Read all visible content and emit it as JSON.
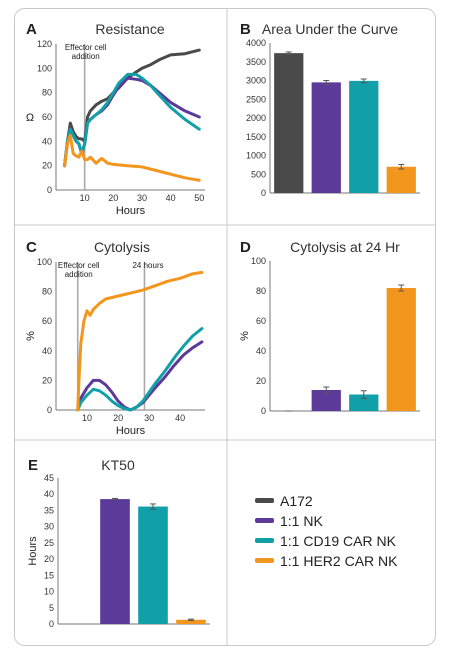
{
  "colors": {
    "A172": "#4a4a4a",
    "NK": "#5b3a9a",
    "CD19": "#12a0a8",
    "HER2": "#f3961e",
    "border": "#c8c8c8"
  },
  "legend": {
    "items": [
      {
        "label": "A172",
        "color_key": "A172"
      },
      {
        "label": "1:1 NK",
        "color_key": "NK"
      },
      {
        "label": "1:1 CD19 CAR NK",
        "color_key": "CD19"
      },
      {
        "label": "1:1 HER2 CAR NK",
        "color_key": "HER2"
      }
    ]
  },
  "chart_data": [
    {
      "id": "A",
      "letter": "A",
      "type": "line",
      "title": "Resistance",
      "xlabel": "Hours",
      "ylabel": "Ω",
      "xlim": [
        0,
        52
      ],
      "ylim": [
        0,
        120
      ],
      "xticks": [
        10,
        20,
        30,
        40,
        50
      ],
      "yticks": [
        0,
        20,
        40,
        60,
        80,
        100,
        120
      ],
      "vline": {
        "x": 10,
        "label_lines": [
          "Effector cell",
          "addition"
        ]
      },
      "series": [
        {
          "key": "A172",
          "x": [
            3,
            4,
            5,
            6,
            7,
            8,
            9,
            10,
            11,
            12,
            14,
            16,
            18,
            20,
            22,
            25,
            28,
            30,
            33,
            36,
            40,
            45,
            50
          ],
          "y": [
            20,
            40,
            55,
            48,
            44,
            42,
            42,
            40,
            60,
            65,
            70,
            73,
            75,
            80,
            84,
            92,
            97,
            100,
            103,
            107,
            111,
            112,
            115
          ]
        },
        {
          "key": "NK",
          "x": [
            3,
            4,
            5,
            6,
            7,
            8,
            9,
            10,
            11,
            12,
            14,
            16,
            18,
            20,
            22,
            25,
            28,
            30,
            33,
            36,
            40,
            45,
            50
          ],
          "y": [
            20,
            40,
            50,
            45,
            40,
            38,
            30,
            38,
            55,
            58,
            62,
            65,
            70,
            78,
            85,
            92,
            91,
            90,
            86,
            80,
            72,
            65,
            60
          ]
        },
        {
          "key": "CD19",
          "x": [
            3,
            4,
            5,
            6,
            7,
            8,
            9,
            10,
            11,
            12,
            14,
            16,
            18,
            20,
            22,
            25,
            28,
            30,
            33,
            36,
            40,
            45,
            50
          ],
          "y": [
            20,
            40,
            50,
            45,
            40,
            38,
            30,
            38,
            55,
            58,
            62,
            66,
            72,
            80,
            88,
            95,
            95,
            92,
            86,
            78,
            68,
            58,
            50
          ]
        },
        {
          "key": "HER2",
          "x": [
            3,
            4,
            5,
            6,
            7,
            8,
            9,
            10,
            11,
            12,
            14,
            16,
            18,
            20,
            25,
            30,
            35,
            40,
            45,
            50
          ],
          "y": [
            20,
            38,
            45,
            30,
            28,
            27,
            32,
            25,
            25,
            27,
            22,
            26,
            22,
            21,
            20,
            19,
            16,
            13,
            10,
            8
          ]
        }
      ]
    },
    {
      "id": "B",
      "letter": "B",
      "type": "bar",
      "title": "Area Under the Curve",
      "ylim": [
        0,
        4000
      ],
      "yticks": [
        0,
        500,
        1000,
        1500,
        2000,
        2500,
        3000,
        3500,
        4000
      ],
      "categories": [
        "A172",
        "1:1 NK",
        "1:1 CD19 CAR NK",
        "1:1 HER2 CAR NK"
      ],
      "values": [
        3730,
        2950,
        2990,
        700
      ],
      "errors": [
        30,
        50,
        50,
        60
      ],
      "color_keys": [
        "A172",
        "NK",
        "CD19",
        "HER2"
      ]
    },
    {
      "id": "C",
      "letter": "C",
      "type": "line",
      "title": "Cytolysis",
      "xlabel": "Hours",
      "ylabel": "%",
      "xlim": [
        0,
        48
      ],
      "ylim": [
        0,
        100
      ],
      "xticks": [
        10,
        20,
        30,
        40
      ],
      "yticks": [
        0,
        20,
        40,
        60,
        80,
        100
      ],
      "vline": {
        "x": 7,
        "label_lines": [
          "Effector cell",
          "addition"
        ]
      },
      "vline2": {
        "x": 28.5,
        "label_lines": [
          "24 hours"
        ]
      },
      "series": [
        {
          "key": "NK",
          "x": [
            7,
            8,
            10,
            12,
            14,
            16,
            18,
            20,
            22,
            24,
            26,
            28,
            30,
            32,
            35,
            38,
            41,
            44,
            47
          ],
          "y": [
            0,
            8,
            15,
            20,
            20,
            17,
            12,
            6,
            2,
            0,
            2,
            5,
            10,
            15,
            22,
            30,
            37,
            42,
            46
          ]
        },
        {
          "key": "CD19",
          "x": [
            7,
            8,
            10,
            12,
            14,
            16,
            18,
            20,
            22,
            24,
            26,
            28,
            30,
            32,
            35,
            38,
            41,
            44,
            47
          ],
          "y": [
            0,
            5,
            10,
            14,
            13,
            10,
            6,
            3,
            1,
            0,
            2,
            6,
            12,
            18,
            26,
            35,
            43,
            50,
            55
          ]
        },
        {
          "key": "HER2",
          "x": [
            7,
            7.5,
            8,
            9,
            10,
            11,
            12,
            14,
            16,
            18,
            20,
            24,
            28,
            32,
            36,
            40,
            44,
            47
          ],
          "y": [
            0,
            25,
            45,
            60,
            67,
            64,
            68,
            72,
            75,
            76,
            77,
            79,
            81,
            84,
            87,
            89,
            92,
            93
          ]
        }
      ]
    },
    {
      "id": "D",
      "letter": "D",
      "type": "bar",
      "title": "Cytolysis at 24 Hr",
      "ylabel": "%",
      "ylim": [
        0,
        100
      ],
      "yticks": [
        0,
        20,
        40,
        60,
        80,
        100
      ],
      "categories": [
        "A172",
        "1:1 NK",
        "1:1 CD19 CAR NK",
        "1:1 HER2 CAR NK"
      ],
      "values": [
        0,
        14,
        11,
        82
      ],
      "errors": [
        0.5,
        2,
        2.5,
        2
      ],
      "color_keys": [
        "A172",
        "NK",
        "CD19",
        "HER2"
      ]
    },
    {
      "id": "E",
      "letter": "E",
      "type": "bar",
      "title": "KT50",
      "ylabel": "Hours",
      "ylim": [
        0,
        45
      ],
      "yticks": [
        0,
        5,
        10,
        15,
        20,
        25,
        30,
        35,
        40,
        45
      ],
      "categories": [
        "A172",
        "1:1 NK",
        "1:1 CD19 CAR NK",
        "1:1 HER2 CAR NK"
      ],
      "values": [
        0,
        38.5,
        36.2,
        1.3
      ],
      "errors": [
        0,
        0.2,
        0.8,
        0.2
      ],
      "color_keys": [
        "A172",
        "NK",
        "CD19",
        "HER2"
      ]
    }
  ]
}
